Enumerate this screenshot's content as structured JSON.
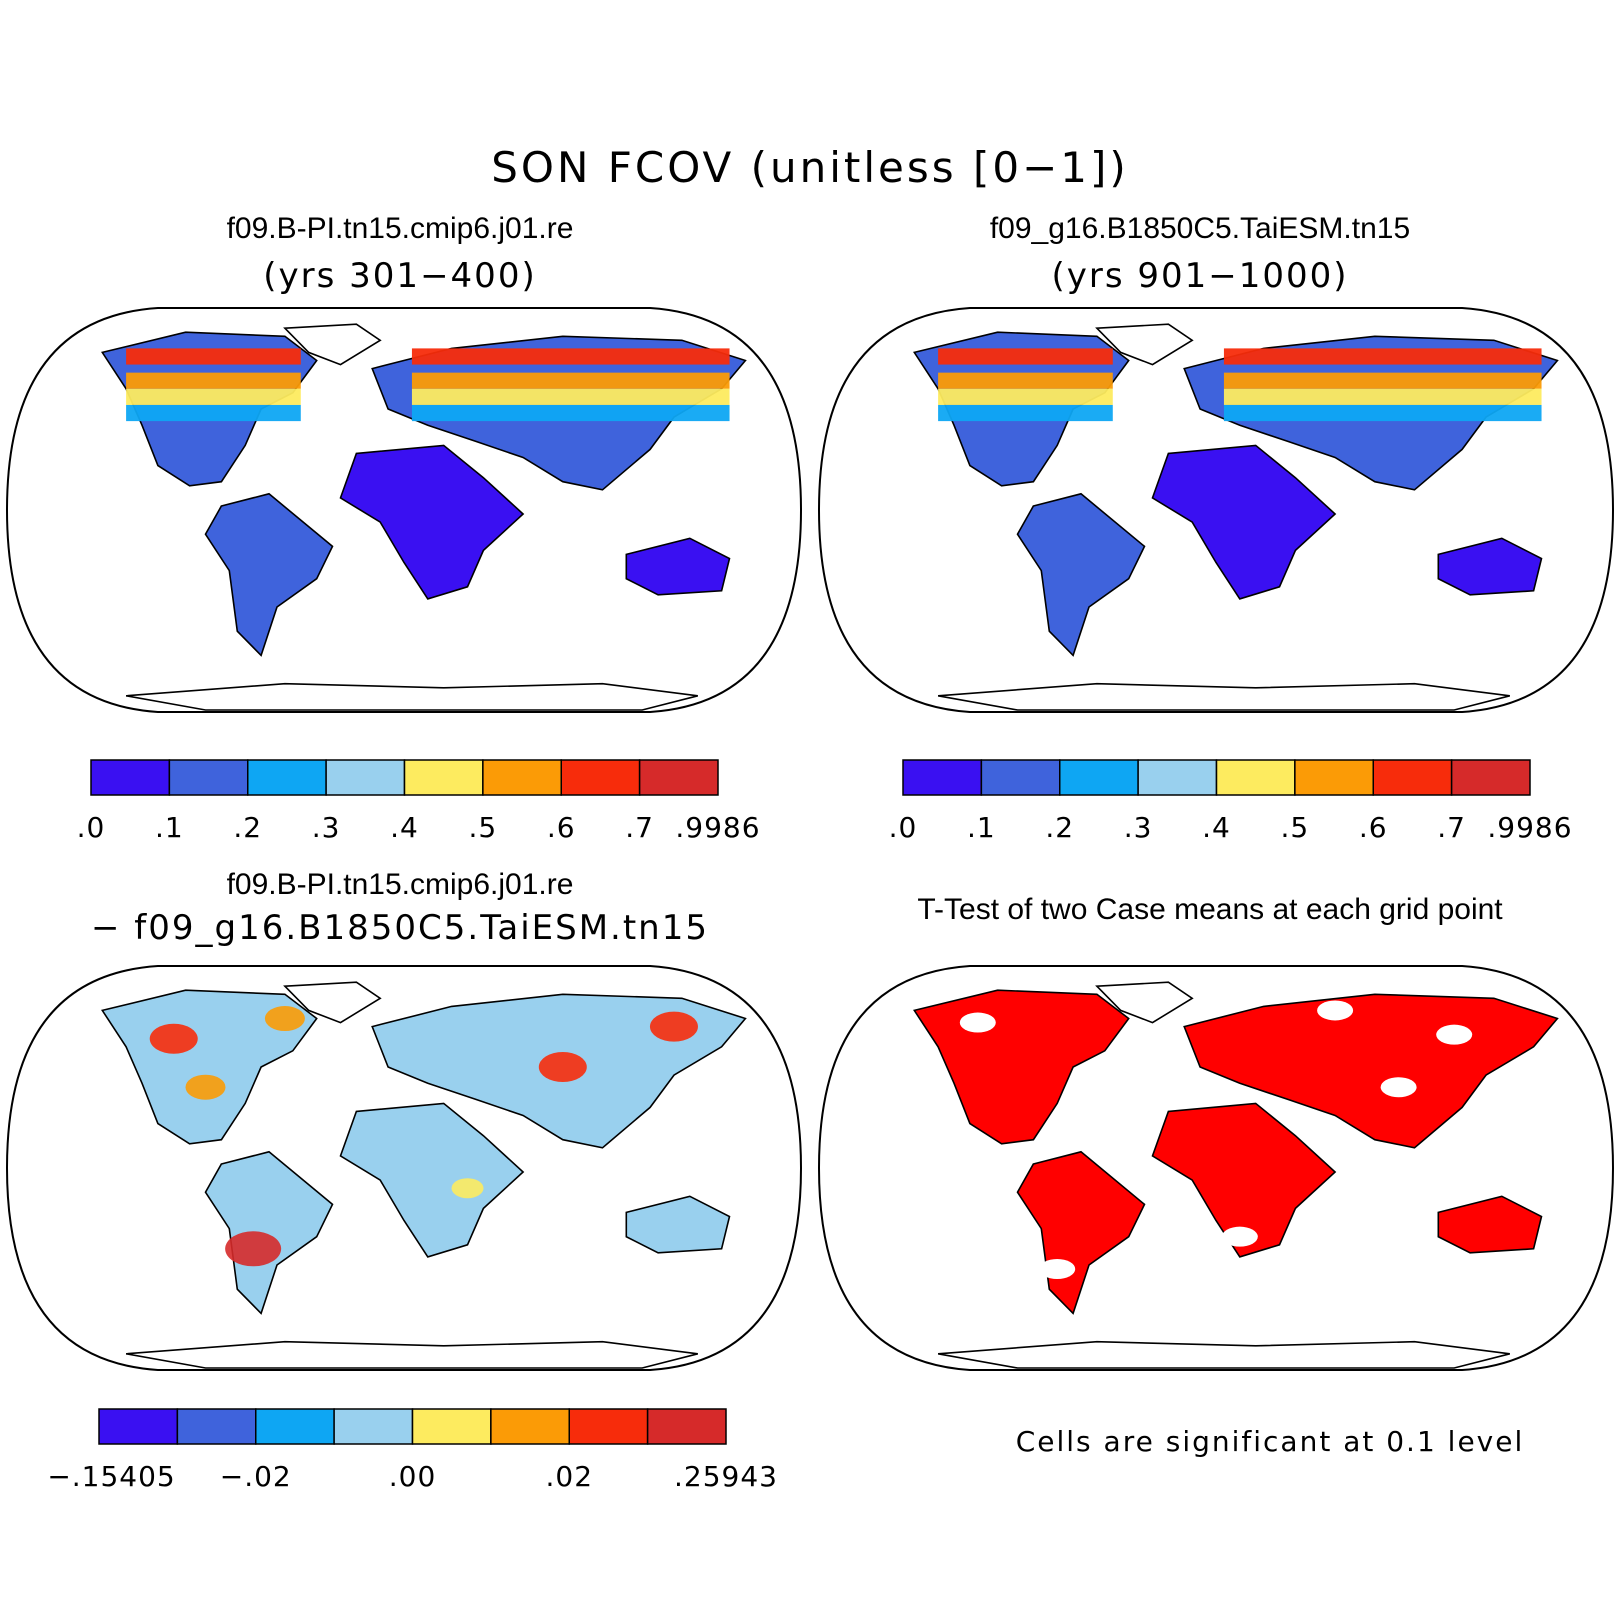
{
  "title": "SON FCOV (unitless [0−1])",
  "panels": [
    {
      "case": "f09.B-PI.tn15.cmip6.j01.re",
      "subtitle": "(yrs 301−400)",
      "type": "cover"
    },
    {
      "case": "f09_g16.B1850C5.TaiESM.tn15",
      "subtitle": "(yrs 901−1000)",
      "type": "cover"
    },
    {
      "case": "f09.B-PI.tn15.cmip6.j01.re",
      "subtitle": "− f09_g16.B1850C5.TaiESM.tn15",
      "type": "difference"
    },
    {
      "case": "T-Test of two Case means at each grid point",
      "subtitle": "",
      "type": "ttest"
    }
  ],
  "colorbars": {
    "cover": {
      "colors": [
        "#3a10f2",
        "#3f63dc",
        "#0ea6f3",
        "#99d0ee",
        "#fdeb5f",
        "#fb9b06",
        "#f72c0b",
        "#d62a2a"
      ],
      "ticks": [
        ".0",
        ".1",
        ".2",
        ".3",
        ".4",
        ".5",
        ".6",
        ".7",
        ".9986"
      ]
    },
    "difference": {
      "colors": [
        "#3a10f2",
        "#3f63dc",
        "#0ea6f3",
        "#99d0ee",
        "#fdeb5f",
        "#fb9b06",
        "#f72c0b",
        "#d62a2a"
      ],
      "ticks": [
        "−.15405",
        "−.02",
        ".00",
        ".02",
        ".25943"
      ]
    }
  },
  "significance_color": "#ff0000",
  "significance_note": "Cells are significant at 0.1 level"
}
